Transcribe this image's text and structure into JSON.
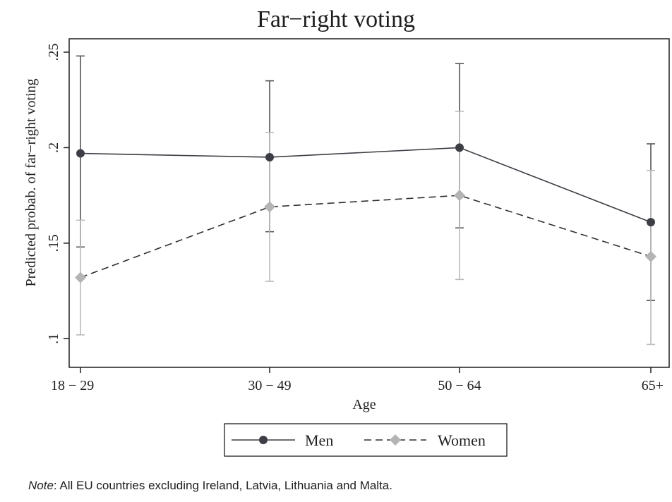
{
  "chart_data": {
    "type": "line",
    "title": "Far−right voting",
    "xlabel": "Age",
    "ylabel": "Predicted probab. of far−right voting",
    "categories": [
      "18 − 29",
      "30 − 49",
      "50 − 64",
      "65+"
    ],
    "ylim": [
      0.085,
      0.257
    ],
    "yticks": [
      0.1,
      0.15,
      0.2,
      0.25
    ],
    "ytick_labels": [
      ".1",
      ".15",
      ".2",
      ".25"
    ],
    "grid": false,
    "legend_position": "bottom",
    "series": [
      {
        "name": "Men",
        "marker": "circle",
        "line_style": "solid",
        "color": "#3d3d45",
        "errorbar_color": "#555555",
        "values": [
          0.197,
          0.195,
          0.2,
          0.161
        ],
        "ci_low": [
          0.148,
          0.156,
          0.158,
          0.12
        ],
        "ci_high": [
          0.248,
          0.235,
          0.244,
          0.202
        ]
      },
      {
        "name": "Women",
        "marker": "diamond",
        "line_style": "dashed",
        "color": "#b4b4b4",
        "line_color": "#2e2e2e",
        "errorbar_color": "#bbbbbb",
        "values": [
          0.132,
          0.169,
          0.175,
          0.143
        ],
        "ci_low": [
          0.102,
          0.13,
          0.131,
          0.097
        ],
        "ci_high": [
          0.162,
          0.208,
          0.219,
          0.188
        ]
      }
    ]
  },
  "note": {
    "label": "Note",
    "text": ": All EU countries excluding Ireland, Latvia, Lithuania and Malta."
  }
}
